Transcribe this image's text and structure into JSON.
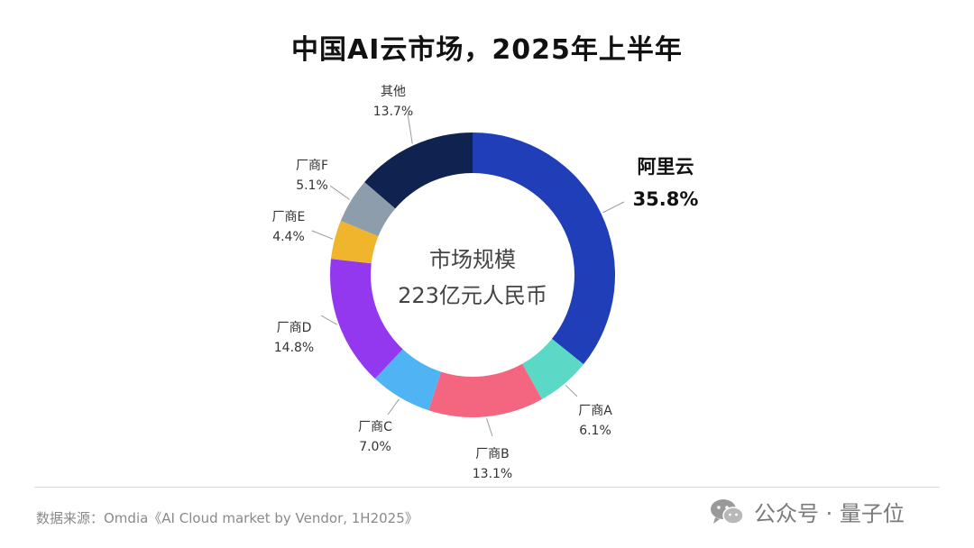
{
  "chart_data": {
    "type": "pie",
    "donut": true,
    "title": "中国AI云市场，2025年上半年",
    "center_label_line1": "市场规模",
    "center_label_line2": "223亿元人民币",
    "slices": [
      {
        "name": "阿里云",
        "pct_label": "35.8%",
        "value": 35.8,
        "color": "#1f3eb8",
        "highlight": true
      },
      {
        "name": "厂商A",
        "pct_label": "6.1%",
        "value": 6.1,
        "color": "#5cd8c6"
      },
      {
        "name": "厂商B",
        "pct_label": "13.1%",
        "value": 13.1,
        "color": "#f4667f"
      },
      {
        "name": "厂商C",
        "pct_label": "7.0%",
        "value": 7.0,
        "color": "#50b4f4"
      },
      {
        "name": "厂商D",
        "pct_label": "14.8%",
        "value": 14.8,
        "color": "#9438f0"
      },
      {
        "name": "厂商E",
        "pct_label": "4.4%",
        "value": 4.4,
        "color": "#f1b52d"
      },
      {
        "name": "厂商F",
        "pct_label": "5.1%",
        "value": 5.1,
        "color": "#8e9dac"
      },
      {
        "name": "其他",
        "pct_label": "13.7%",
        "value": 13.7,
        "color": "#0f2250"
      }
    ]
  },
  "footer": {
    "source": "数据来源：Omdia《AI Cloud market by Vendor, 1H2025》",
    "brand_text": "公众号 · 量子位"
  }
}
